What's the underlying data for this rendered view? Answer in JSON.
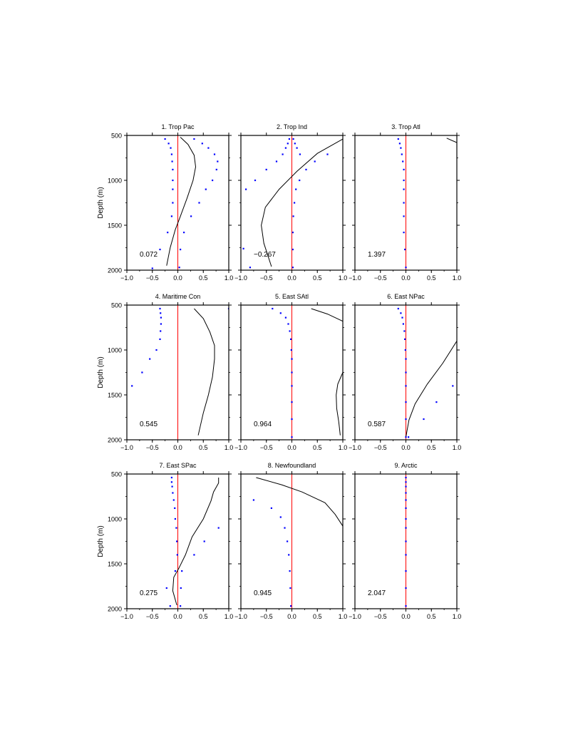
{
  "chart_data": {
    "type": "scatter",
    "layout_rows": 3,
    "layout_cols": 3,
    "ylabel": "Depth (m)",
    "ylim": [
      2000,
      500
    ],
    "xlim": [
      -1.0,
      1.0
    ],
    "x_tick_labels": [
      "−1.0",
      "−0.5",
      "0.0",
      "0.5",
      "1.0"
    ],
    "y_tick_labels": [
      "500",
      "1000",
      "1500",
      "2000"
    ],
    "colors": {
      "reference_line": "#ff0000",
      "dots": "#0000ff",
      "curve": "#000000",
      "frame": "#000000"
    },
    "panels": [
      {
        "title": "1. Trop Pac",
        "value_label": "0.072",
        "curve": [
          [
            0.05,
            520
          ],
          [
            0.2,
            600
          ],
          [
            0.32,
            720
          ],
          [
            0.35,
            850
          ],
          [
            0.3,
            1000
          ],
          [
            0.18,
            1200
          ],
          [
            0.05,
            1400
          ],
          [
            -0.05,
            1550
          ],
          [
            -0.15,
            1750
          ],
          [
            -0.22,
            1950
          ]
        ],
        "dots": [
          [
            -0.25,
            540
          ],
          [
            -0.18,
            590
          ],
          [
            -0.14,
            640
          ],
          [
            -0.12,
            710
          ],
          [
            -0.11,
            790
          ],
          [
            -0.1,
            880
          ],
          [
            -0.1,
            1000
          ],
          [
            -0.1,
            1100
          ],
          [
            -0.1,
            1250
          ],
          [
            -0.12,
            1400
          ],
          [
            -0.2,
            1580
          ],
          [
            -0.35,
            1770
          ],
          [
            -0.5,
            1980
          ],
          [
            0.32,
            540
          ],
          [
            0.48,
            590
          ],
          [
            0.6,
            640
          ],
          [
            0.72,
            710
          ],
          [
            0.78,
            790
          ],
          [
            0.76,
            880
          ],
          [
            0.68,
            1000
          ],
          [
            0.55,
            1100
          ],
          [
            0.42,
            1250
          ],
          [
            0.26,
            1400
          ],
          [
            0.12,
            1580
          ],
          [
            0.05,
            1770
          ],
          [
            0.03,
            1970
          ]
        ]
      },
      {
        "title": "2. Trop Ind",
        "value_label": "−0.267",
        "curve": [
          [
            1.0,
            540
          ],
          [
            0.5,
            700
          ],
          [
            0.1,
            900
          ],
          [
            -0.25,
            1100
          ],
          [
            -0.52,
            1300
          ],
          [
            -0.6,
            1500
          ],
          [
            -0.55,
            1700
          ],
          [
            -0.4,
            1960
          ]
        ],
        "dots": [
          [
            -0.05,
            540
          ],
          [
            -0.08,
            590
          ],
          [
            -0.12,
            640
          ],
          [
            -0.18,
            710
          ],
          [
            -0.3,
            790
          ],
          [
            -0.5,
            880
          ],
          [
            -0.72,
            1000
          ],
          [
            -0.9,
            1100
          ],
          [
            -0.95,
            1760
          ],
          [
            -0.82,
            1970
          ],
          [
            0.03,
            540
          ],
          [
            0.06,
            590
          ],
          [
            0.1,
            640
          ],
          [
            0.16,
            710
          ],
          [
            0.7,
            710
          ],
          [
            0.45,
            790
          ],
          [
            0.28,
            880
          ],
          [
            0.15,
            1000
          ],
          [
            0.08,
            1100
          ],
          [
            0.05,
            1250
          ],
          [
            0.03,
            1400
          ],
          [
            0.02,
            1580
          ],
          [
            0.02,
            1770
          ],
          [
            0.02,
            1970
          ]
        ]
      },
      {
        "title": "3. Trop Atl",
        "value_label": "1.397",
        "curve": [
          [
            0.8,
            530
          ],
          [
            1.0,
            580
          ]
        ],
        "dots": [
          [
            -0.15,
            540
          ],
          [
            -0.12,
            590
          ],
          [
            -0.1,
            640
          ],
          [
            -0.08,
            710
          ],
          [
            -0.06,
            790
          ],
          [
            -0.04,
            880
          ],
          [
            -0.04,
            1000
          ],
          [
            -0.04,
            1100
          ],
          [
            -0.04,
            1250
          ],
          [
            -0.04,
            1400
          ],
          [
            -0.04,
            1580
          ],
          [
            -0.02,
            1770
          ],
          [
            0.0,
            1970
          ]
        ]
      },
      {
        "title": "4. Maritime Con",
        "value_label": "0.545",
        "curve": [
          [
            0.32,
            540
          ],
          [
            0.5,
            650
          ],
          [
            0.63,
            800
          ],
          [
            0.72,
            950
          ],
          [
            0.72,
            1100
          ],
          [
            0.68,
            1300
          ],
          [
            0.6,
            1500
          ],
          [
            0.5,
            1700
          ],
          [
            0.4,
            1950
          ]
        ],
        "dots": [
          [
            -0.35,
            540
          ],
          [
            -0.34,
            590
          ],
          [
            -0.33,
            640
          ],
          [
            -0.33,
            710
          ],
          [
            -0.34,
            790
          ],
          [
            -0.35,
            880
          ],
          [
            -0.42,
            1000
          ],
          [
            -0.55,
            1100
          ],
          [
            -0.7,
            1250
          ],
          [
            -0.9,
            1400
          ],
          [
            1.0,
            540
          ]
        ]
      },
      {
        "title": "5. East SAtl",
        "value_label": "0.964",
        "curve_segments": [
          [
            [
              0.38,
              540
            ],
            [
              0.7,
              600
            ],
            [
              1.0,
              680
            ]
          ],
          [
            [
              1.0,
              1250
            ],
            [
              0.9,
              1380
            ],
            [
              0.87,
              1500
            ],
            [
              0.88,
              1650
            ],
            [
              0.92,
              1800
            ],
            [
              0.95,
              1950
            ]
          ]
        ],
        "dots": [
          [
            -0.38,
            540
          ],
          [
            -0.22,
            590
          ],
          [
            -0.12,
            640
          ],
          [
            -0.07,
            710
          ],
          [
            -0.04,
            790
          ],
          [
            -0.02,
            880
          ],
          [
            -0.01,
            1000
          ],
          [
            0.0,
            1100
          ],
          [
            0.0,
            1250
          ],
          [
            0.0,
            1400
          ],
          [
            0.0,
            1580
          ],
          [
            0.0,
            1770
          ],
          [
            0.0,
            1970
          ]
        ]
      },
      {
        "title": "6. East NPac",
        "value_label": "0.587",
        "curve": [
          [
            1.0,
            900
          ],
          [
            0.72,
            1150
          ],
          [
            0.42,
            1380
          ],
          [
            0.18,
            1600
          ],
          [
            0.06,
            1780
          ],
          [
            0.0,
            1970
          ]
        ],
        "dots": [
          [
            -0.15,
            540
          ],
          [
            -0.1,
            590
          ],
          [
            -0.07,
            640
          ],
          [
            -0.05,
            710
          ],
          [
            -0.03,
            790
          ],
          [
            -0.02,
            880
          ],
          [
            -0.01,
            1000
          ],
          [
            0.0,
            1100
          ],
          [
            0.0,
            1250
          ],
          [
            0.0,
            1400
          ],
          [
            0.0,
            1580
          ],
          [
            0.0,
            1770
          ],
          [
            0.0,
            1970
          ],
          [
            0.92,
            1400
          ],
          [
            0.6,
            1580
          ],
          [
            0.35,
            1770
          ],
          [
            0.05,
            1970
          ]
        ]
      },
      {
        "title": "7. East SPac",
        "value_label": "0.275",
        "curve": [
          [
            0.8,
            540
          ],
          [
            0.8,
            600
          ],
          [
            0.7,
            700
          ],
          [
            0.65,
            800
          ],
          [
            0.5,
            1000
          ],
          [
            0.28,
            1200
          ],
          [
            0.15,
            1400
          ],
          [
            0.02,
            1550
          ],
          [
            -0.08,
            1650
          ],
          [
            -0.1,
            1800
          ],
          [
            -0.02,
            1960
          ]
        ],
        "dots": [
          [
            -0.12,
            540
          ],
          [
            -0.12,
            590
          ],
          [
            -0.11,
            640
          ],
          [
            -0.1,
            710
          ],
          [
            -0.08,
            790
          ],
          [
            -0.06,
            880
          ],
          [
            -0.05,
            1000
          ],
          [
            -0.03,
            1100
          ],
          [
            -0.02,
            1250
          ],
          [
            -0.01,
            1400
          ],
          [
            -0.05,
            1580
          ],
          [
            -0.22,
            1770
          ],
          [
            -0.15,
            1970
          ],
          [
            0.8,
            1100
          ],
          [
            0.52,
            1250
          ],
          [
            0.32,
            1400
          ],
          [
            0.08,
            1580
          ],
          [
            0.06,
            1770
          ],
          [
            0.05,
            1970
          ]
        ]
      },
      {
        "title": "8. Newfoundland",
        "value_label": "0.945",
        "curve": [
          [
            -0.7,
            540
          ],
          [
            -0.2,
            620
          ],
          [
            0.2,
            700
          ],
          [
            0.65,
            820
          ],
          [
            0.85,
            950
          ],
          [
            1.0,
            1080
          ]
        ],
        "dots": [
          [
            -0.75,
            790
          ],
          [
            -0.4,
            880
          ],
          [
            -0.22,
            980
          ],
          [
            -0.14,
            1100
          ],
          [
            -0.09,
            1250
          ],
          [
            -0.06,
            1400
          ],
          [
            -0.04,
            1580
          ],
          [
            -0.03,
            1770
          ],
          [
            -0.02,
            1970
          ]
        ]
      },
      {
        "title": "9. Arctic",
        "value_label": "2.047",
        "curve": [],
        "dots": [
          [
            0.0,
            540
          ],
          [
            0.0,
            590
          ],
          [
            0.0,
            640
          ],
          [
            0.0,
            710
          ],
          [
            0.0,
            790
          ],
          [
            0.0,
            880
          ],
          [
            0.0,
            1000
          ],
          [
            0.0,
            1100
          ],
          [
            0.0,
            1250
          ],
          [
            0.0,
            1400
          ],
          [
            0.0,
            1580
          ],
          [
            0.0,
            1770
          ],
          [
            0.0,
            1970
          ]
        ]
      }
    ]
  }
}
